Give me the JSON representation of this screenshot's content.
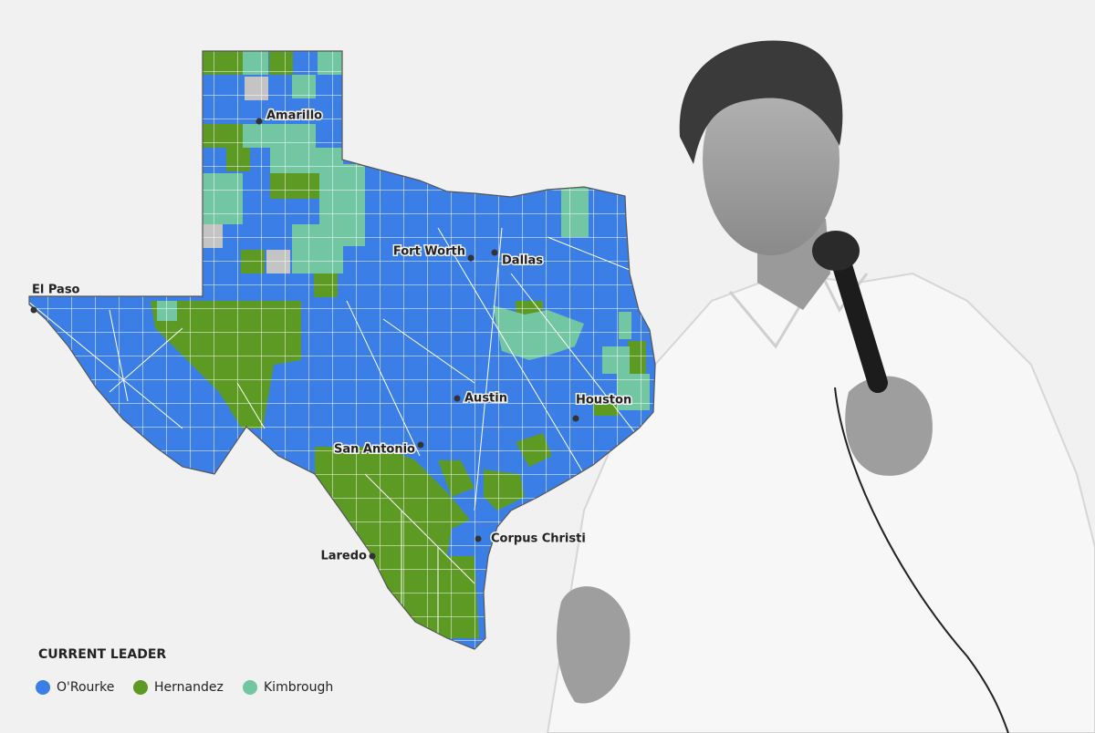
{
  "map": {
    "cities": [
      {
        "name": "Amarillo"
      },
      {
        "name": "El Paso"
      },
      {
        "name": "Fort Worth"
      },
      {
        "name": "Dallas"
      },
      {
        "name": "Austin"
      },
      {
        "name": "Houston"
      },
      {
        "name": "San Antonio"
      },
      {
        "name": "Corpus Christi"
      },
      {
        "name": "Laredo"
      }
    ]
  },
  "legend": {
    "title": "CURRENT LEADER",
    "items": [
      {
        "label": "O'Rourke",
        "color": "#3b7fe6"
      },
      {
        "label": "Hernandez",
        "color": "#5c9a23"
      },
      {
        "label": "Kimbrough",
        "color": "#72c7a2"
      }
    ]
  }
}
